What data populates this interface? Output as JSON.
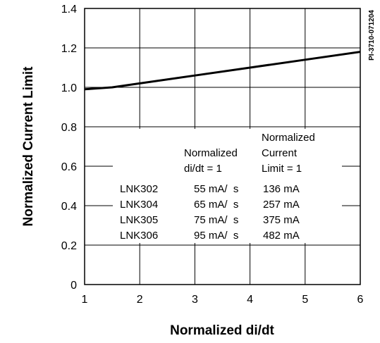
{
  "chart_data": {
    "type": "line",
    "title": "",
    "xlabel": "Normalized di/dt",
    "ylabel": "Normalized Current Limit",
    "xlim": [
      1,
      6
    ],
    "ylim": [
      0,
      1.4
    ],
    "x_ticks": [
      "1",
      "2",
      "3",
      "4",
      "5",
      "6"
    ],
    "y_ticks": [
      "0",
      "0.2",
      "0.4",
      "0.6",
      "0.8",
      "1.0",
      "1.2",
      "1.4"
    ],
    "grid": true,
    "series": [
      {
        "x": [
          1,
          1.5,
          2,
          3,
          4,
          5,
          6
        ],
        "y": [
          0.99,
          1.0,
          1.02,
          1.06,
          1.1,
          1.14,
          1.18
        ]
      }
    ],
    "figure_id": "PI-3710-071204",
    "annotation_table": {
      "headers": {
        "didt_line1": "Normalized",
        "didt_line2": "di/dt = 1",
        "limit_line1": "Normalized",
        "limit_line2": "Current",
        "limit_line3": "Limit = 1"
      },
      "rows": [
        {
          "part": "LNK302",
          "didt": "55 mA/  s",
          "limit": "136 mA"
        },
        {
          "part": "LNK304",
          "didt": "65 mA/  s",
          "limit": "257 mA"
        },
        {
          "part": "LNK305",
          "didt": "75 mA/  s",
          "limit": "375 mA"
        },
        {
          "part": "LNK306",
          "didt": "95 mA/  s",
          "limit": "482 mA"
        }
      ]
    }
  }
}
